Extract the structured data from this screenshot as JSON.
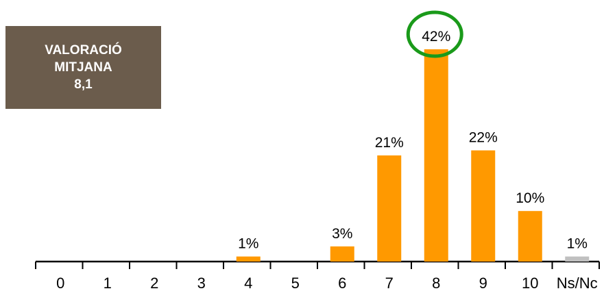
{
  "info_box": {
    "line1": "VALORACIÓ",
    "line2": "MITJANA",
    "value": "8,1"
  },
  "colors": {
    "bar": "#ff9900",
    "nsnc_bar": "#c0c0c0",
    "highlight_circle": "#1a9a1a",
    "info_box_bg": "#6b5c4c",
    "axis": "#000000"
  },
  "chart_data": {
    "type": "bar",
    "categories": [
      "0",
      "1",
      "2",
      "3",
      "4",
      "5",
      "6",
      "7",
      "8",
      "9",
      "10",
      "Ns/Nc"
    ],
    "values": [
      0,
      0,
      0,
      0,
      1,
      0,
      3,
      21,
      42,
      22,
      10,
      1
    ],
    "data_labels": [
      "",
      "",
      "",
      "",
      "1%",
      "",
      "3%",
      "21%",
      "42%",
      "22%",
      "10%",
      "1%"
    ],
    "highlight_category": "8",
    "gray_category": "Ns/Nc",
    "unit": "%",
    "ylim": [
      0,
      42
    ],
    "grid": false,
    "legend": "none",
    "title": "",
    "xlabel": "",
    "ylabel": ""
  }
}
